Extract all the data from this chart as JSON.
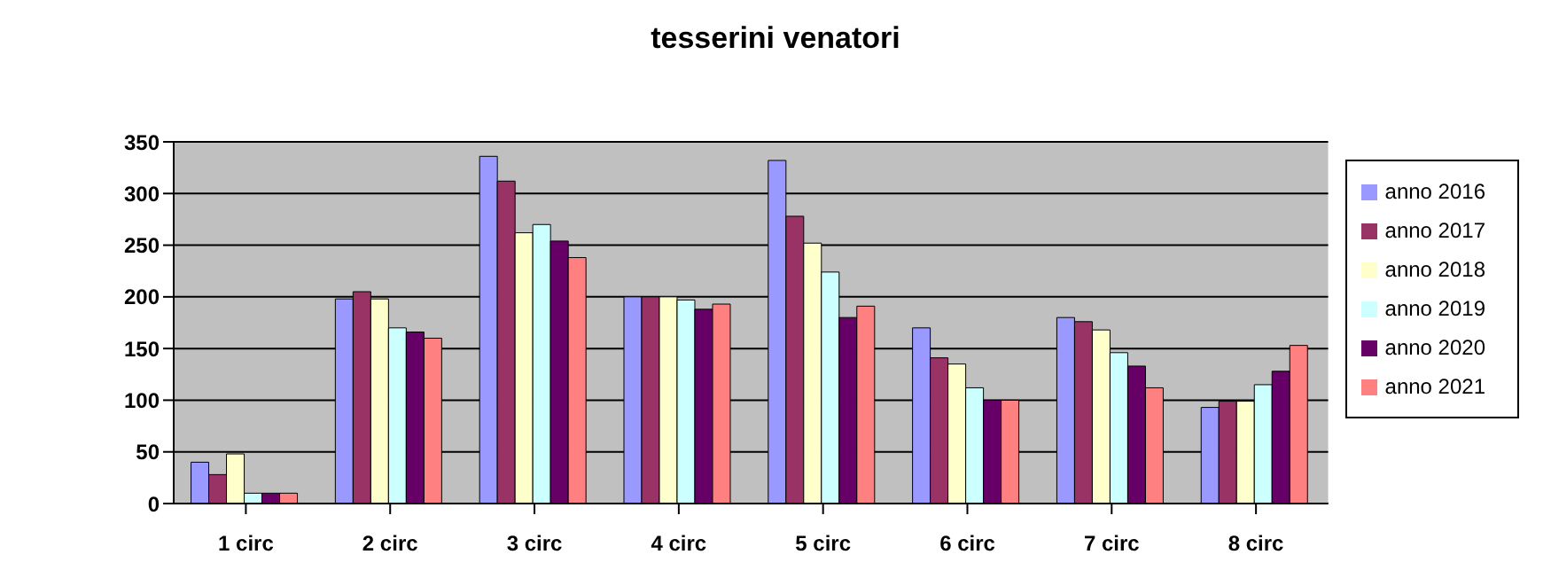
{
  "chart_data": {
    "type": "bar",
    "title": "tesserini venatori",
    "categories": [
      "1 circ",
      "2 circ",
      "3 circ",
      "4 circ",
      "5 circ",
      "6 circ",
      "7 circ",
      "8 circ"
    ],
    "series": [
      {
        "name": "anno 2016",
        "color": "#9999ff",
        "values": [
          40,
          198,
          336,
          200,
          332,
          170,
          180,
          93
        ]
      },
      {
        "name": "anno 2017",
        "color": "#993366",
        "values": [
          28,
          205,
          312,
          200,
          278,
          141,
          176,
          99
        ]
      },
      {
        "name": "anno 2018",
        "color": "#ffffcc",
        "values": [
          48,
          198,
          262,
          200,
          252,
          135,
          168,
          99
        ]
      },
      {
        "name": "anno 2019",
        "color": "#ccffff",
        "values": [
          10,
          170,
          270,
          197,
          224,
          112,
          146,
          115
        ]
      },
      {
        "name": "anno 2020",
        "color": "#660066",
        "values": [
          10,
          166,
          254,
          188,
          180,
          100,
          133,
          128
        ]
      },
      {
        "name": "anno 2021",
        "color": "#ff8080",
        "values": [
          10,
          160,
          238,
          193,
          191,
          100,
          112,
          153
        ]
      }
    ],
    "ylim": [
      0,
      350
    ],
    "yticks": [
      0,
      50,
      100,
      150,
      200,
      250,
      300,
      350
    ],
    "grid": "y",
    "legend": "right"
  }
}
